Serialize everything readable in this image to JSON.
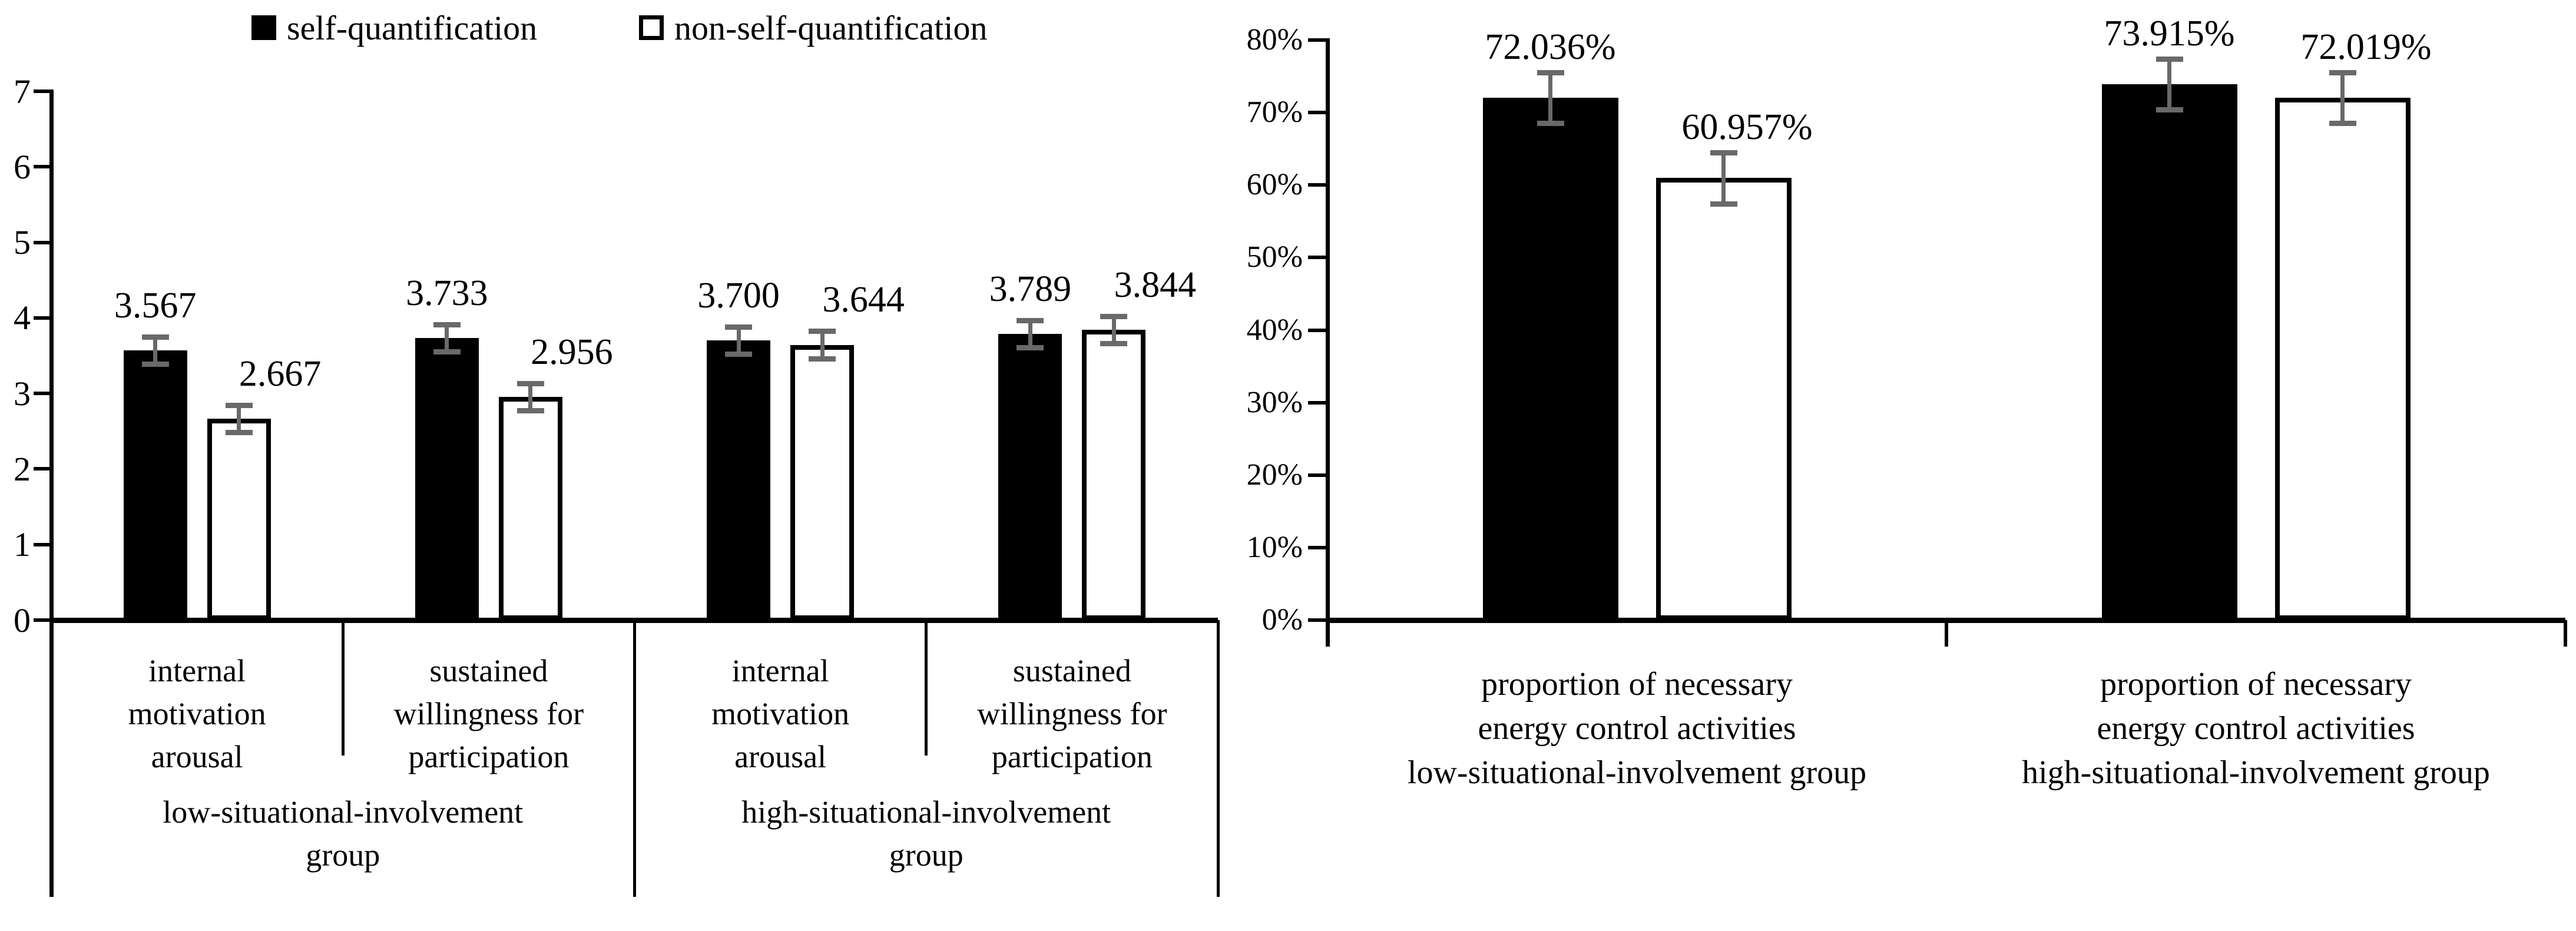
{
  "figure": {
    "description": "two bar charts comparing self-quantification vs non-self-quantification"
  },
  "legend": {
    "entries": [
      {
        "label": "self-quantification",
        "fill": "#000000"
      },
      {
        "label": "non-self-quantification",
        "fill": "#ffffff"
      }
    ]
  },
  "colors": {
    "bar_black": "#000000",
    "bar_white": "#ffffff",
    "bar_border": "#000000",
    "error_bar": "#696969",
    "axis": "#000000"
  },
  "chart_data": [
    {
      "type": "bar",
      "title": "",
      "xlabel": "",
      "ylabel": "",
      "ylim": [
        0,
        7
      ],
      "grid": false,
      "legend_position": "top",
      "ytick_labels": [
        "0",
        "1",
        "2",
        "3",
        "4",
        "5",
        "6",
        "7"
      ],
      "series_names": [
        "self-quantification",
        "non-self-quantification"
      ],
      "groups": [
        {
          "label": "low-situational-involvement group",
          "label_lines": [
            "low-situational-involvement",
            "group"
          ],
          "categories": [
            {
              "label": "internal motivation arousal",
              "label_lines": [
                "internal",
                "motivation",
                "arousal"
              ],
              "values": [
                3.567,
                2.667
              ],
              "errors": [
                0.18,
                0.18
              ],
              "data_labels": [
                "3.567",
                "2.667"
              ]
            },
            {
              "label": "sustained willingness for participation",
              "label_lines": [
                "sustained",
                "willingness for",
                "participation"
              ],
              "values": [
                3.733,
                2.956
              ],
              "errors": [
                0.18,
                0.18
              ],
              "data_labels": [
                "3.733",
                "2.956"
              ]
            }
          ]
        },
        {
          "label": "high-situational-involvement group",
          "label_lines": [
            "high-situational-involvement",
            "group"
          ],
          "categories": [
            {
              "label": "internal motivation arousal",
              "label_lines": [
                "internal",
                "motivation",
                "arousal"
              ],
              "values": [
                3.7,
                3.644
              ],
              "errors": [
                0.18,
                0.18
              ],
              "data_labels": [
                "3.700",
                "3.644"
              ]
            },
            {
              "label": "sustained willingness for participation",
              "label_lines": [
                "sustained",
                "willingness for",
                "participation"
              ],
              "values": [
                3.789,
                3.844
              ],
              "errors": [
                0.18,
                0.18
              ],
              "data_labels": [
                "3.789",
                "3.844"
              ]
            }
          ]
        }
      ]
    },
    {
      "type": "bar",
      "title": "",
      "xlabel": "",
      "ylabel": "",
      "ylim": [
        0,
        80
      ],
      "grid": false,
      "ytick_format": "percent",
      "ytick_labels": [
        "0%",
        "10%",
        "20%",
        "30%",
        "40%",
        "50%",
        "60%",
        "70%",
        "80%"
      ],
      "series_names": [
        "self-quantification",
        "non-self-quantification"
      ],
      "groups": [
        {
          "label": "proportion of necessary energy control activities low-situational-involvement group",
          "label_lines": [
            "proportion of necessary",
            "energy control activities",
            "low-situational-involvement group"
          ],
          "categories": [
            {
              "label": "proportion of necessary energy control activities",
              "label_lines": [],
              "values": [
                72.036,
                60.957
              ],
              "errors": [
                3.5,
                3.5
              ],
              "data_labels": [
                "72.036%",
                "60.957%"
              ]
            }
          ]
        },
        {
          "label": "proportion of necessary energy control activities high-situational-involvement group",
          "label_lines": [
            "proportion of necessary",
            "energy control activities",
            "high-situational-involvement group"
          ],
          "categories": [
            {
              "label": "proportion of necessary energy control activities",
              "label_lines": [],
              "values": [
                73.915,
                72.019
              ],
              "errors": [
                3.5,
                3.5
              ],
              "data_labels": [
                "73.915%",
                "72.019%"
              ]
            }
          ]
        }
      ]
    }
  ]
}
